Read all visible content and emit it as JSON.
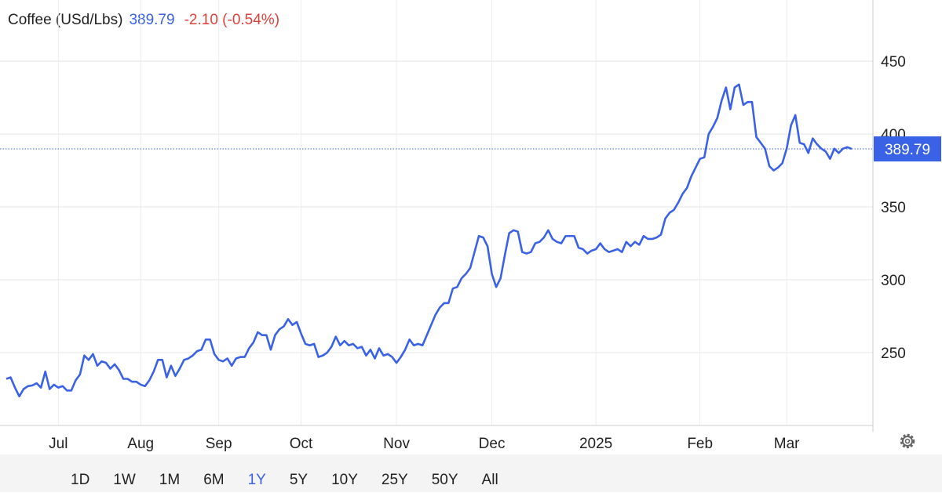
{
  "header": {
    "title": "Coffee (USd/Lbs)",
    "change": "-2.10 (-0.54%)"
  },
  "ranges": [
    "1D",
    "1W",
    "1M",
    "6M",
    "1Y",
    "5Y",
    "10Y",
    "25Y",
    "50Y",
    "All"
  ],
  "active_range": "1Y",
  "chart_data": {
    "type": "line",
    "categories": [
      null,
      null,
      null,
      null,
      null,
      null,
      null,
      null,
      null,
      null,
      null,
      null,
      "Jul",
      null,
      null,
      null,
      null,
      null,
      null,
      null,
      null,
      null,
      null,
      null,
      null,
      null,
      null,
      null,
      null,
      null,
      null,
      "Aug",
      null,
      null,
      null,
      null,
      null,
      null,
      null,
      null,
      null,
      null,
      null,
      null,
      null,
      null,
      null,
      null,
      null,
      "Sep",
      null,
      null,
      null,
      null,
      null,
      null,
      null,
      null,
      null,
      null,
      null,
      null,
      null,
      null,
      null,
      null,
      null,
      null,
      "Oct",
      null,
      null,
      null,
      null,
      null,
      null,
      null,
      null,
      null,
      null,
      null,
      null,
      null,
      null,
      null,
      null,
      null,
      null,
      null,
      null,
      null,
      "Nov",
      null,
      null,
      null,
      null,
      null,
      null,
      null,
      null,
      null,
      null,
      null,
      null,
      null,
      null,
      null,
      null,
      null,
      null,
      null,
      null,
      null,
      "Dec",
      null,
      null,
      null,
      null,
      null,
      null,
      null,
      null,
      null,
      null,
      null,
      null,
      null,
      null,
      null,
      null,
      null,
      null,
      null,
      null,
      null,
      null,
      null,
      "2025",
      null,
      null,
      null,
      null,
      null,
      null,
      null,
      null,
      null,
      null,
      null,
      null,
      null,
      null,
      null,
      null,
      null,
      null,
      null,
      null,
      null,
      null,
      null,
      "Feb",
      null,
      null,
      null,
      null,
      null,
      null,
      null,
      null,
      null,
      null,
      null,
      null,
      null,
      null,
      null,
      null,
      null,
      null,
      null,
      "Mar",
      null,
      null,
      null,
      null,
      null,
      null,
      null,
      null,
      null,
      null,
      null,
      null,
      null,
      null,
      null
    ],
    "series": [
      {
        "name": "Coffee",
        "color": "#3a62e6",
        "values": [
          232,
          233,
          226,
          220,
          225,
          227,
          227.5,
          229,
          226,
          237,
          225,
          228,
          226,
          227,
          224,
          224,
          231,
          235,
          248,
          245,
          249,
          241,
          244,
          243,
          239,
          242,
          238,
          232,
          232,
          230,
          230,
          228,
          227,
          231,
          237,
          245,
          245,
          233,
          241,
          234,
          239,
          245,
          246,
          248,
          251,
          252,
          259,
          259,
          249,
          245,
          244,
          246,
          241,
          246,
          247,
          247,
          253,
          257,
          264,
          262,
          262,
          252,
          262,
          266,
          268,
          273,
          269,
          271,
          263,
          256,
          255,
          256,
          247,
          248,
          250,
          254,
          261,
          255,
          258,
          255,
          256,
          253,
          254,
          248,
          252,
          246,
          253,
          248,
          249,
          247,
          243,
          247,
          252,
          259,
          255,
          256,
          255,
          262,
          269,
          276,
          281,
          284,
          284,
          294,
          295,
          301,
          304,
          308,
          319,
          330,
          329,
          323,
          304,
          295,
          301,
          317,
          332,
          334,
          333,
          319,
          318,
          319,
          325,
          326,
          329,
          334,
          328,
          326,
          325,
          330,
          330,
          330,
          322,
          321,
          318,
          320,
          321,
          325,
          321,
          319,
          320,
          321,
          319,
          326,
          323,
          326,
          324,
          330,
          328,
          328,
          329,
          331,
          342,
          346,
          348,
          353,
          359,
          363,
          371,
          377,
          383,
          384,
          400,
          405,
          411,
          423,
          432,
          417,
          432,
          434,
          420,
          422,
          422,
          398,
          394,
          390,
          378,
          375,
          377,
          380,
          390,
          406,
          413,
          394,
          393,
          387,
          397,
          393,
          390,
          388,
          383,
          390,
          387,
          390,
          391,
          389.79
        ]
      }
    ],
    "ylim": [
      200,
      485
    ],
    "yticks": [
      250,
      300,
      350,
      400,
      450
    ],
    "grid": true
  }
}
